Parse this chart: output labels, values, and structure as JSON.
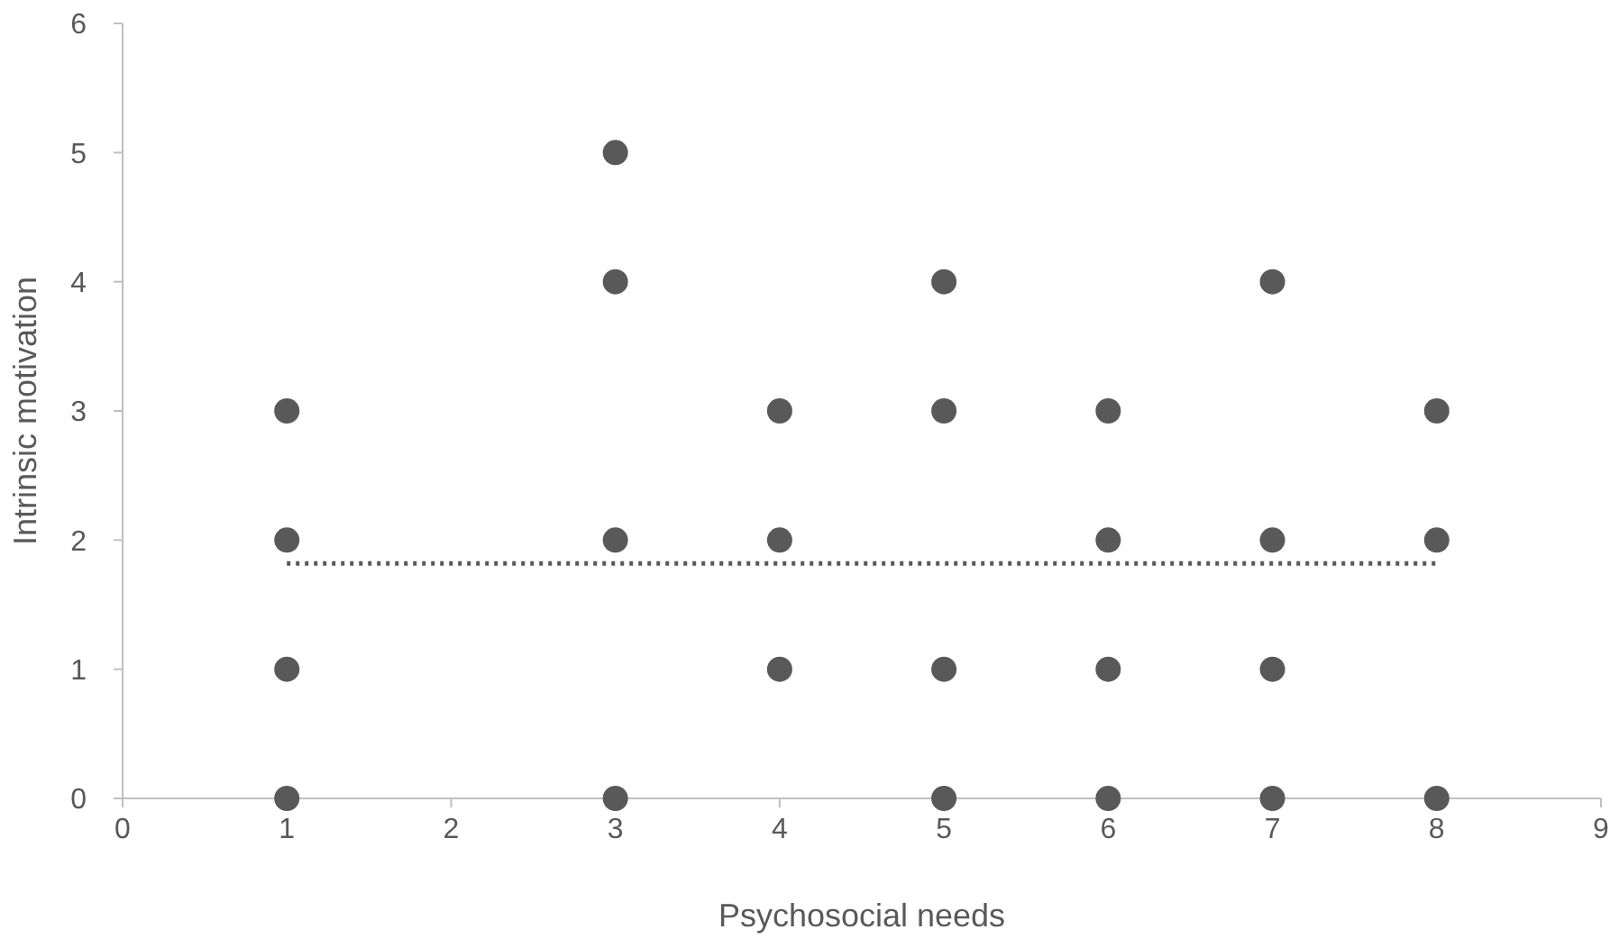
{
  "chart_data": {
    "type": "scatter",
    "xlabel": "Psychosocial needs",
    "ylabel": "Intrinsic motivation",
    "xlim": [
      0,
      9
    ],
    "ylim": [
      0,
      6
    ],
    "xticks": [
      0,
      1,
      2,
      3,
      4,
      5,
      6,
      7,
      8,
      9
    ],
    "yticks": [
      0,
      1,
      2,
      3,
      4,
      5,
      6
    ],
    "grid": false,
    "series": [
      {
        "color": "#595959",
        "marker": "circle",
        "x": [
          1,
          1,
          1,
          1,
          3,
          3,
          3,
          3,
          4,
          4,
          4,
          5,
          5,
          5,
          5,
          6,
          6,
          6,
          6,
          7,
          7,
          7,
          7,
          8,
          8,
          8
        ],
        "values": [
          0,
          1,
          2,
          3,
          0,
          2,
          4,
          5,
          1,
          2,
          3,
          0,
          1,
          3,
          4,
          0,
          1,
          2,
          3,
          0,
          1,
          2,
          4,
          0,
          2,
          3
        ]
      },
      {
        "type": "line",
        "color": "#595959",
        "line_style": "dotted",
        "marker": "none",
        "x": [
          1,
          8
        ],
        "values": [
          1.82,
          1.82
        ]
      }
    ]
  }
}
